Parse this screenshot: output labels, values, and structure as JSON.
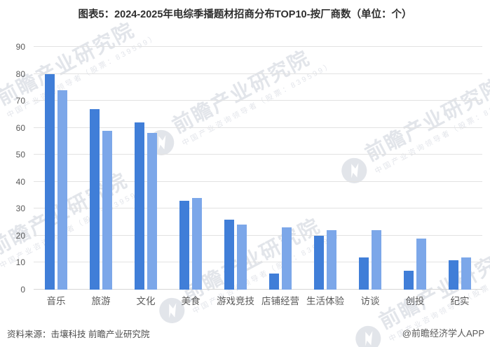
{
  "chart_data": {
    "type": "bar",
    "title": "图表5：2024-2025年电综季播题材招商分布TOP10-按厂商数（单位：个）",
    "categories": [
      "音乐",
      "旅游",
      "文化",
      "美食",
      "游戏竞技",
      "店铺经营",
      "生活体验",
      "访谈",
      "创投",
      "纪实"
    ],
    "series": [
      {
        "name": "bar-dark-blue",
        "color": "#407ED8",
        "values": [
          80,
          67,
          62,
          33,
          26,
          6,
          20,
          12,
          7,
          11
        ]
      },
      {
        "name": "bar-light-blue",
        "color": "#7CA7E9",
        "values": [
          74,
          59,
          58,
          34,
          24,
          23,
          22,
          22,
          19,
          12
        ]
      }
    ],
    "xlabel": "",
    "ylabel": "",
    "ylim": [
      0,
      90
    ],
    "ytick_step": 10,
    "grid": true,
    "legend": "none"
  },
  "footer": {
    "source": "资料来源：击壤科技  前瞻产业研究院",
    "credit": "@前瞻经济学人APP"
  },
  "watermark": {
    "text": "前瞻产业研究院",
    "subtext": "中国产业咨询领导者（股票：839599）",
    "logo": "qianzhan-logo"
  },
  "colors": {
    "grid": "#e2e2e2",
    "axis_text": "#595959",
    "title_text": "#2f2f2f",
    "watermark": "#ccd0da"
  }
}
